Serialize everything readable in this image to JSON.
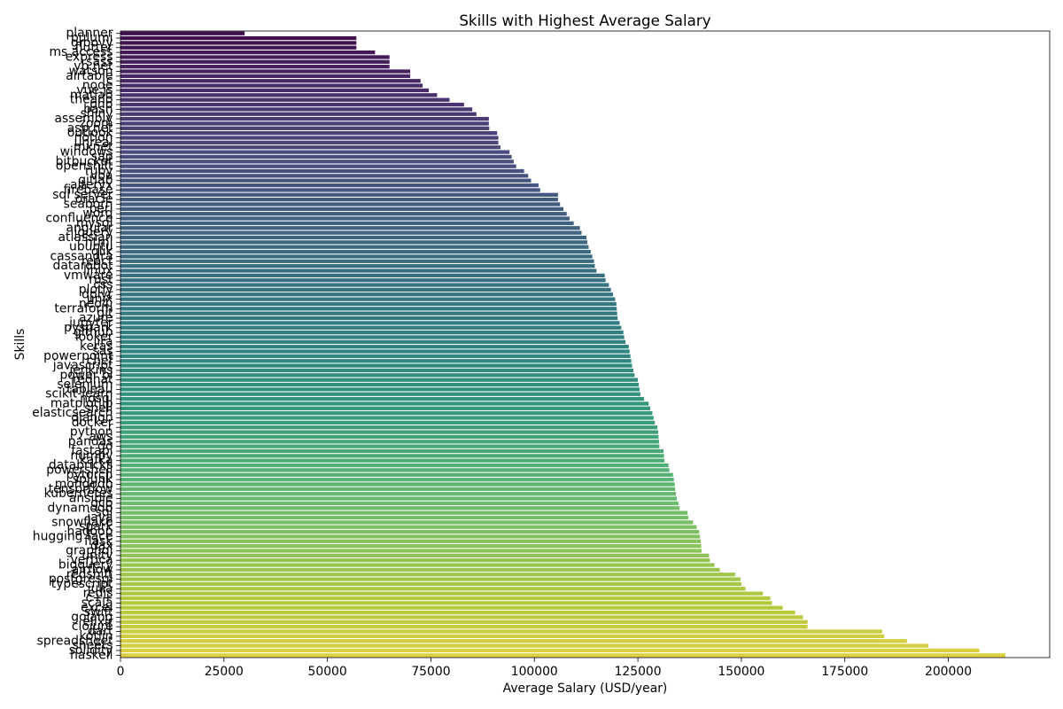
{
  "chart_data": {
    "type": "bar",
    "orientation": "horizontal",
    "title": "Skills with Highest Average Salary",
    "xlabel": "Average Salary (USD/year)",
    "ylabel": "Skills",
    "xlim": [
      0,
      224500
    ],
    "xticks": [
      0,
      25000,
      50000,
      75000,
      100000,
      125000,
      150000,
      175000,
      200000
    ],
    "xtick_labels": [
      "0",
      "25000",
      "50000",
      "75000",
      "100000",
      "125000",
      "150000",
      "175000",
      "200000"
    ],
    "grid": false,
    "palette": [
      "#440154",
      "#482475",
      "#414487",
      "#355f8d",
      "#2a788e",
      "#21918c",
      "#22a884",
      "#44bf70",
      "#7ad151",
      "#bddf26",
      "#fde725"
    ],
    "saturation": 0.75,
    "axis_color": "#000000",
    "categories": [
      "planner",
      "pulumi",
      "groovy",
      "flutter",
      "ms access",
      "express",
      "sass",
      "vb.net",
      "watson",
      "airtable",
      "c",
      "node",
      "vue.js",
      "matlab",
      "theano",
      "php",
      "bash",
      "shiny",
      "assembly",
      "zoom",
      "asp.net",
      "outlook",
      "notion",
      "unreal",
      "mxnet",
      "windows",
      "sap",
      "bitbucket",
      "openshift",
      "ruby",
      "vba",
      "gitlab",
      "alteryx",
      "firebase",
      "sql server",
      "oracle",
      "seaborn",
      "perl",
      "word",
      "confluence",
      "mysql",
      "angular",
      "jquery",
      "atlassian",
      "html",
      "ubuntu",
      "qlik",
      "cassandra",
      "react",
      "datarobot",
      "linux",
      "vmware",
      "rust",
      "css",
      "plotly",
      "dplyr",
      "unix",
      "neo4j",
      "terraform",
      "git",
      "azure",
      "jupyter",
      "pyspark",
      "github",
      "looker",
      "jira",
      "keras",
      "sas",
      "powerpoint",
      "chef",
      "javascript",
      "jenkins",
      "power bi",
      "redhat",
      "selenium",
      "tableau",
      "scikit-learn",
      "nosql",
      "matplotlib",
      "shell",
      "elasticsearch",
      "django",
      "docker",
      "r",
      "python",
      "aws",
      "pandas",
      "go",
      "fastapi",
      "numpy",
      "kafka",
      "databricks",
      "powershell",
      "pytorch",
      "splunk",
      "mongodb",
      "tensorflow",
      "kubernetes",
      "ansible",
      "gcp",
      "dynamodb",
      "sql",
      "java",
      "snowflake",
      "spark",
      "hadoop",
      "hugging face",
      "flask",
      "dax",
      "graphql",
      "unity",
      "vertica",
      "bigquery",
      "airflow",
      "redshift",
      "postgresql",
      "typescript",
      "julia",
      "redis",
      "c++",
      "scala",
      "excel",
      "swift",
      "golang",
      "elixir",
      "clojure",
      "dart",
      "kotlin",
      "spreadsheet",
      "sheets",
      "solidity",
      "haskell"
    ],
    "values": [
      30000,
      57000,
      57000,
      57000,
      61500,
      65000,
      65000,
      65000,
      70000,
      70000,
      72500,
      73000,
      74500,
      76500,
      79500,
      83000,
      85000,
      86000,
      89000,
      89000,
      89100,
      91000,
      91300,
      91300,
      91800,
      94000,
      94500,
      95000,
      95600,
      97500,
      98500,
      99200,
      101000,
      101400,
      105700,
      105700,
      106200,
      107000,
      107800,
      108500,
      109500,
      111000,
      111400,
      112600,
      112800,
      113100,
      113600,
      114000,
      114400,
      114600,
      115000,
      117000,
      117200,
      118000,
      118500,
      119000,
      119500,
      119800,
      119900,
      120000,
      120100,
      120600,
      121000,
      121500,
      121700,
      122000,
      122800,
      123000,
      123200,
      123400,
      123600,
      123900,
      124200,
      125000,
      125200,
      125400,
      125600,
      126500,
      127600,
      128000,
      128500,
      128800,
      129100,
      129700,
      129900,
      130000,
      130100,
      130200,
      131200,
      131300,
      131400,
      132400,
      132600,
      133500,
      133700,
      133900,
      134000,
      134200,
      134400,
      134800,
      135100,
      137000,
      137200,
      138300,
      139200,
      139800,
      140000,
      140200,
      140300,
      140400,
      142200,
      142400,
      143500,
      144800,
      148500,
      149800,
      150000,
      151000,
      155200,
      157000,
      157400,
      160000,
      163000,
      164900,
      166000,
      166000,
      184000,
      184500,
      190000,
      195200,
      207500,
      213800
    ]
  }
}
